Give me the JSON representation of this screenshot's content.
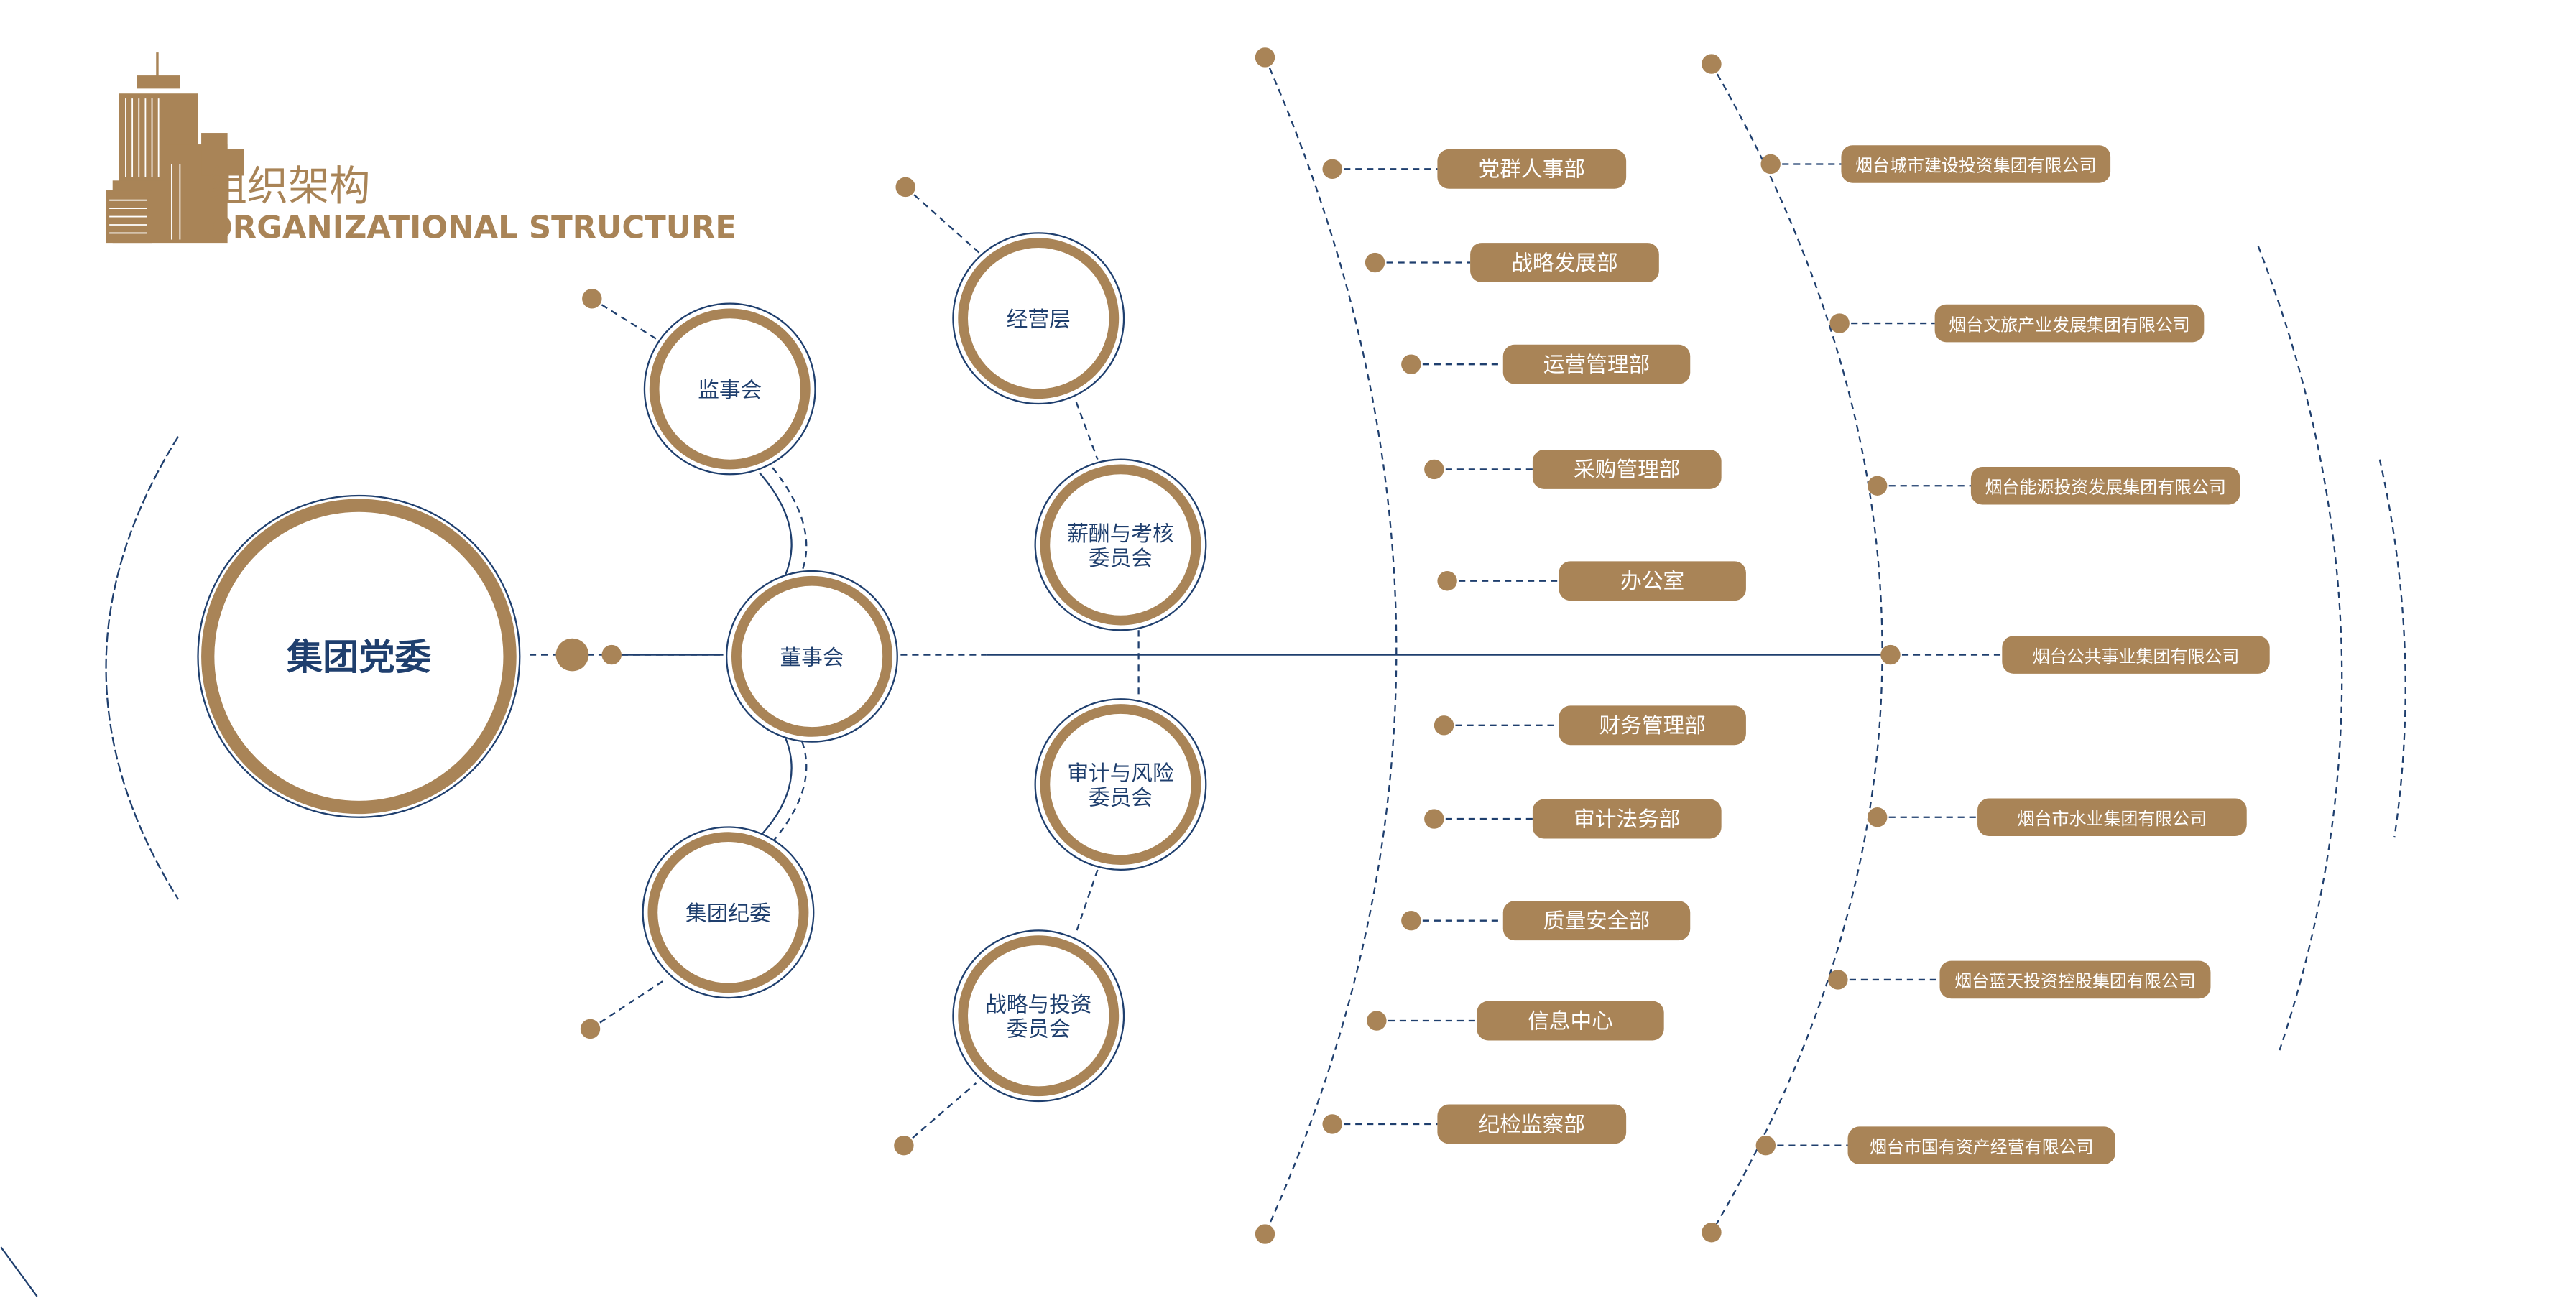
{
  "header": {
    "title_cn": "组织架构",
    "title_en": "ORGANIZATIONAL STRUCTURE",
    "logo_icon": "building-icon"
  },
  "colors": {
    "accent": "#a98457",
    "line": "#1f3f6e",
    "text": "#1f3f6e",
    "box_text": "#ffffff"
  },
  "root": {
    "label": "集团党委"
  },
  "board": {
    "center": "董事会",
    "upper": "监事会",
    "lower": "集团纪委"
  },
  "committees": [
    {
      "lines": [
        "经营层"
      ]
    },
    {
      "lines": [
        "薪酬与考核",
        "委员会"
      ]
    },
    {
      "lines": [
        "审计与风险",
        "委员会"
      ]
    },
    {
      "lines": [
        "战略与投资",
        "委员会"
      ]
    }
  ],
  "departments": [
    "党群人事部",
    "战略发展部",
    "运营管理部",
    "采购管理部",
    "办公室",
    "财务管理部",
    "审计法务部",
    "质量安全部",
    "信息中心",
    "纪检监察部"
  ],
  "companies": [
    "烟台城市建设投资集团有限公司",
    "烟台文旅产业发展集团有限公司",
    "烟台能源投资发展集团有限公司",
    "烟台公共事业集团有限公司",
    "烟台市水业集团有限公司",
    "烟台蓝天投资控股集团有限公司",
    "烟台市国有资产经营有限公司"
  ]
}
